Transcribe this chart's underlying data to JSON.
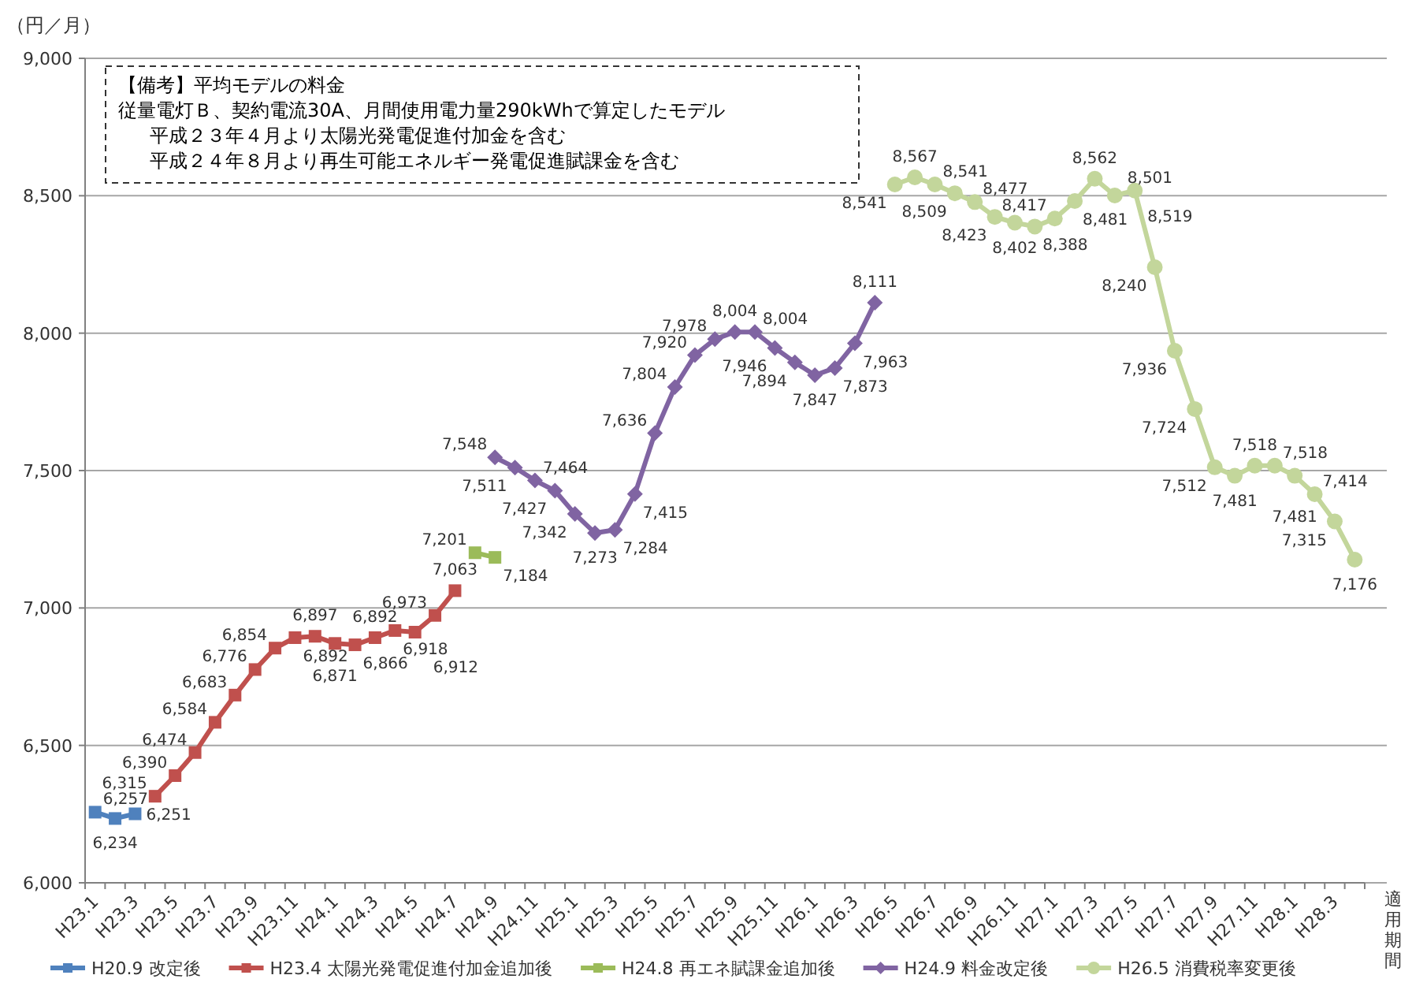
{
  "chart_data": {
    "type": "line",
    "ylabel": "（円／月）",
    "xlabel": "適用期間",
    "annotations": [
      "【備考】平均モデルの料金",
      "従量電灯Ｂ、契約電流30A、月間使用電力量290kWhで算定したモデル",
      "平成２３年４月より太陽光発電促進付加金を含む",
      "平成２４年８月より再生可能エネルギー発電促進賦課金を含む"
    ],
    "categories": [
      "H23.1",
      null,
      "H23.3",
      null,
      "H23.5",
      null,
      "H23.7",
      null,
      "H23.9",
      null,
      "H23.11",
      null,
      "H24.1",
      null,
      "H24.3",
      null,
      "H24.5",
      null,
      "H24.7",
      null,
      "H24.9",
      null,
      "H24.11",
      null,
      "H25.1",
      null,
      "H25.3",
      null,
      "H25.5",
      null,
      "H25.7",
      null,
      "H25.9",
      null,
      "H25.11",
      null,
      "H26.1",
      null,
      "H26.3",
      null,
      "H26.5",
      null,
      "H26.7",
      null,
      "H26.9",
      null,
      "H26.11",
      null,
      "H27.1",
      null,
      "H27.3",
      null,
      "H27.5",
      null,
      "H27.7",
      null,
      "H27.9",
      null,
      "H27.11",
      null,
      "H28.1",
      null,
      "H28.3",
      null
    ],
    "series": [
      {
        "name": "H20.9 改定後",
        "color": "#4f81bd",
        "marker": "square",
        "value_labels": [
          "6,257",
          "6,234",
          "6,251",
          null,
          null,
          null,
          null,
          null,
          null,
          null,
          null,
          null,
          null,
          null,
          null,
          null,
          null,
          null,
          null,
          null,
          null,
          null,
          null,
          null,
          null,
          null,
          null,
          null,
          null,
          null,
          null,
          null,
          null,
          null,
          null,
          null,
          null,
          null,
          null,
          null,
          null,
          null,
          null,
          null,
          null,
          null,
          null,
          null,
          null,
          null,
          null,
          null,
          null,
          null,
          null,
          null,
          null,
          null,
          null,
          null,
          null,
          null,
          null,
          null
        ],
        "values": [
          6257,
          6234,
          6251,
          null,
          null,
          null,
          null,
          null,
          null,
          null,
          null,
          null,
          null,
          null,
          null,
          null,
          null,
          null,
          null,
          null,
          null,
          null,
          null,
          null,
          null,
          null,
          null,
          null,
          null,
          null,
          null,
          null,
          null,
          null,
          null,
          null,
          null,
          null,
          null,
          null,
          null,
          null,
          null,
          null,
          null,
          null,
          null,
          null,
          null,
          null,
          null,
          null,
          null,
          null,
          null,
          null,
          null,
          null,
          null,
          null,
          null,
          null,
          null,
          null
        ]
      },
      {
        "name": "H23.4 太陽光発電促進付加金追加後",
        "color": "#c0504d",
        "marker": "square",
        "value_labels": [
          null,
          null,
          null,
          "6,315",
          "6,390",
          "6,474",
          "6,584",
          "6,683",
          "6,776",
          "6,854",
          "6,892",
          "6,897",
          "6,871",
          "6,866",
          "6,892",
          "6,918",
          "6,912",
          "6,973",
          "7,063",
          null,
          null,
          null,
          null,
          null,
          null,
          null,
          null,
          null,
          null,
          null,
          null,
          null,
          null,
          null,
          null,
          null,
          null,
          null,
          null,
          null,
          null,
          null,
          null,
          null,
          null,
          null,
          null,
          null,
          null,
          null,
          null,
          null,
          null,
          null,
          null,
          null,
          null,
          null,
          null,
          null,
          null,
          null,
          null,
          null
        ],
        "values": [
          null,
          null,
          null,
          6315,
          6390,
          6474,
          6584,
          6683,
          6776,
          6854,
          6892,
          6897,
          6871,
          6866,
          6892,
          6918,
          6912,
          6973,
          7063,
          null,
          null,
          null,
          null,
          null,
          null,
          null,
          null,
          null,
          null,
          null,
          null,
          null,
          null,
          null,
          null,
          null,
          null,
          null,
          null,
          null,
          null,
          null,
          null,
          null,
          null,
          null,
          null,
          null,
          null,
          null,
          null,
          null,
          null,
          null,
          null,
          null,
          null,
          null,
          null,
          null,
          null,
          null,
          null,
          null
        ]
      },
      {
        "name": "H24.8 再エネ賦課金追加後",
        "color": "#9bbb59",
        "marker": "square",
        "value_labels": [
          null,
          null,
          null,
          null,
          null,
          null,
          null,
          null,
          null,
          null,
          null,
          null,
          null,
          null,
          null,
          null,
          null,
          null,
          null,
          "7,201",
          "7,184",
          null,
          null,
          null,
          null,
          null,
          null,
          null,
          null,
          null,
          null,
          null,
          null,
          null,
          null,
          null,
          null,
          null,
          null,
          null,
          null,
          null,
          null,
          null,
          null,
          null,
          null,
          null,
          null,
          null,
          null,
          null,
          null,
          null,
          null,
          null,
          null,
          null,
          null,
          null,
          null,
          null,
          null,
          null
        ],
        "values": [
          null,
          null,
          null,
          null,
          null,
          null,
          null,
          null,
          null,
          null,
          null,
          null,
          null,
          null,
          null,
          null,
          null,
          null,
          null,
          7201,
          7184,
          null,
          null,
          null,
          null,
          null,
          null,
          null,
          null,
          null,
          null,
          null,
          null,
          null,
          null,
          null,
          null,
          null,
          null,
          null,
          null,
          null,
          null,
          null,
          null,
          null,
          null,
          null,
          null,
          null,
          null,
          null,
          null,
          null,
          null,
          null,
          null,
          null,
          null,
          null,
          null,
          null,
          null,
          null
        ]
      },
      {
        "name": "H24.9 料金改定後",
        "color": "#8064a2",
        "marker": "diamond",
        "value_labels": [
          null,
          null,
          null,
          null,
          null,
          null,
          null,
          null,
          null,
          null,
          null,
          null,
          null,
          null,
          null,
          null,
          null,
          null,
          null,
          null,
          "7,548",
          "7,511",
          "7,464",
          "7,427",
          "7,342",
          "7,273",
          "7,284",
          "7,415",
          "7,636",
          "7,804",
          "7,920",
          "7,978",
          "8,004",
          "8,004",
          "7,946",
          "7,894",
          "7,847",
          "7,873",
          "7,963",
          "8,111",
          null,
          null,
          null,
          null,
          null,
          null,
          null,
          null,
          null,
          null,
          null,
          null,
          null,
          null,
          null,
          null,
          null,
          null,
          null,
          null,
          null,
          null,
          null,
          null
        ],
        "values": [
          null,
          null,
          null,
          null,
          null,
          null,
          null,
          null,
          null,
          null,
          null,
          null,
          null,
          null,
          null,
          null,
          null,
          null,
          null,
          null,
          7548,
          7511,
          7464,
          7427,
          7342,
          7273,
          7284,
          7415,
          7636,
          7804,
          7920,
          7978,
          8004,
          8004,
          7946,
          7894,
          7847,
          7873,
          7963,
          8111,
          null,
          null,
          null,
          null,
          null,
          null,
          null,
          null,
          null,
          null,
          null,
          null,
          null,
          null,
          null,
          null,
          null,
          null,
          null,
          null,
          null,
          null,
          null,
          null
        ]
      },
      {
        "name": "H26.5 消費税率変更後",
        "color": "#c3d69b",
        "marker": "circle",
        "value_labels": [
          null,
          null,
          null,
          null,
          null,
          null,
          null,
          null,
          null,
          null,
          null,
          null,
          null,
          null,
          null,
          null,
          null,
          null,
          null,
          null,
          null,
          null,
          null,
          null,
          null,
          null,
          null,
          null,
          null,
          null,
          null,
          null,
          null,
          null,
          null,
          null,
          null,
          null,
          null,
          null,
          "8,541",
          "8,567",
          "8,541",
          "8,509",
          "8,477",
          "8,423",
          "8,402",
          "8,388",
          "8,417",
          "8,481",
          "8,562",
          "8,501",
          "8,519",
          "8,240",
          "7,936",
          "7,724",
          "7,512",
          "7,481",
          "7,518",
          "7,518",
          "7,481",
          "7,414",
          "7,315",
          "7,176"
        ],
        "values": [
          null,
          null,
          null,
          null,
          null,
          null,
          null,
          null,
          null,
          null,
          null,
          null,
          null,
          null,
          null,
          null,
          null,
          null,
          null,
          null,
          null,
          null,
          null,
          null,
          null,
          null,
          null,
          null,
          null,
          null,
          null,
          null,
          null,
          null,
          null,
          null,
          null,
          null,
          null,
          null,
          8541,
          8567,
          8541,
          8509,
          8477,
          8423,
          8402,
          8388,
          8417,
          8481,
          8562,
          8501,
          8519,
          8240,
          7936,
          7724,
          7512,
          7481,
          7518,
          7518,
          7481,
          7414,
          7315,
          7176
        ]
      }
    ],
    "ylim": [
      6000,
      9000
    ],
    "yticks": [
      {
        "value": 6000,
        "label": "6,000"
      },
      {
        "value": 6500,
        "label": "6,500"
      },
      {
        "value": 7000,
        "label": "7,000"
      },
      {
        "value": 7500,
        "label": "7,500"
      },
      {
        "value": 8000,
        "label": "8,000"
      },
      {
        "value": 8500,
        "label": "8,500"
      },
      {
        "value": 9000,
        "label": "9,000"
      }
    ],
    "grid": "y",
    "legend": "bottom",
    "line_style": "solid"
  }
}
